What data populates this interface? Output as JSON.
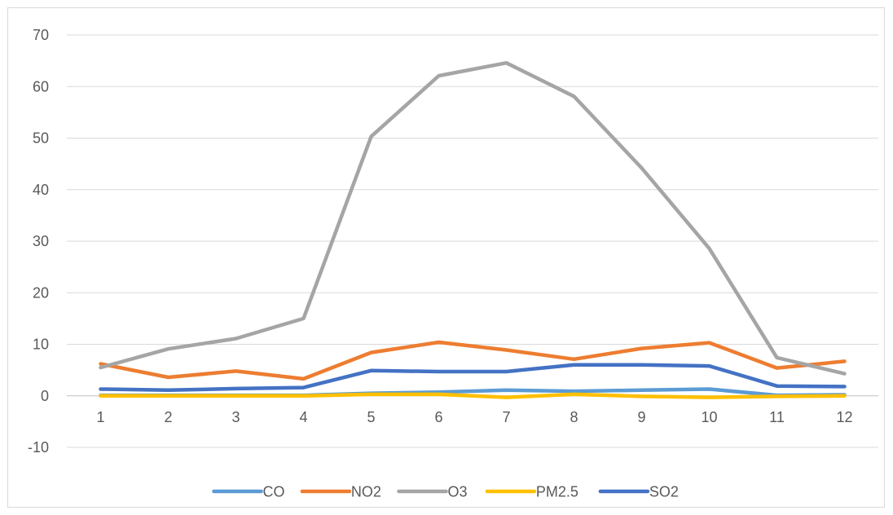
{
  "chart_data": {
    "type": "line",
    "title": "",
    "xlabel": "",
    "ylabel": "",
    "categories": [
      "1",
      "2",
      "3",
      "4",
      "5",
      "6",
      "7",
      "8",
      "9",
      "10",
      "11",
      "12"
    ],
    "ylim": [
      -10,
      70
    ],
    "yticks": [
      -10,
      0,
      10,
      20,
      30,
      40,
      50,
      60,
      70
    ],
    "grid": true,
    "legend_position": "bottom",
    "series": [
      {
        "name": "CO",
        "color": "#5b9bd5",
        "values": [
          0.1,
          0.1,
          0.1,
          0.1,
          0.5,
          0.7,
          1.1,
          0.9,
          1.1,
          1.3,
          0.1,
          0.2
        ]
      },
      {
        "name": "NO2",
        "color": "#ed7d31",
        "values": [
          6.2,
          3.6,
          4.8,
          3.3,
          8.4,
          10.4,
          8.9,
          7.1,
          9.2,
          10.3,
          5.4,
          6.7
        ]
      },
      {
        "name": "O3",
        "color": "#a5a5a5",
        "values": [
          5.5,
          9.1,
          11.1,
          15.0,
          50.3,
          62.1,
          64.6,
          58.1,
          44.2,
          28.6,
          7.4,
          4.3
        ]
      },
      {
        "name": "PM2.5",
        "color": "#ffc000",
        "values": [
          0.0,
          0.0,
          0.0,
          0.0,
          0.3,
          0.3,
          -0.3,
          0.3,
          -0.1,
          -0.3,
          -0.1,
          0.0
        ]
      },
      {
        "name": "SO2",
        "color": "#4472c4",
        "values": [
          1.3,
          1.1,
          1.4,
          1.6,
          4.9,
          4.7,
          4.7,
          6.0,
          6.0,
          5.8,
          1.9,
          1.8
        ]
      }
    ]
  }
}
